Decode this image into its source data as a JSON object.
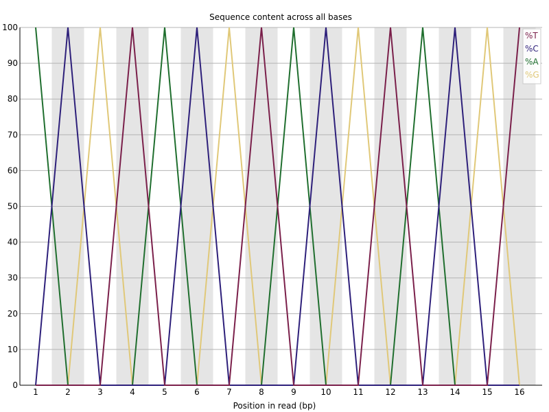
{
  "chart_data": {
    "type": "line",
    "title": "Sequence content across all bases",
    "xlabel": "Position in read (bp)",
    "ylabel": "",
    "ylim": [
      0,
      100
    ],
    "yticks": [
      0,
      10,
      20,
      30,
      40,
      50,
      60,
      70,
      80,
      90,
      100
    ],
    "categories": [
      "1",
      "2",
      "3",
      "4",
      "5",
      "6",
      "7",
      "8",
      "9",
      "10",
      "11",
      "12",
      "13",
      "14",
      "15",
      "16"
    ],
    "grid": "horizontal, alternating shaded position bands",
    "legend_position": "top-right",
    "series": [
      {
        "name": "%T",
        "color": "#7a1f4a",
        "values": [
          0,
          0,
          0,
          100,
          0,
          0,
          0,
          100,
          0,
          0,
          0,
          100,
          0,
          0,
          0,
          100
        ]
      },
      {
        "name": "%C",
        "color": "#2d1f7a",
        "values": [
          0,
          100,
          0,
          0,
          0,
          100,
          0,
          0,
          0,
          100,
          0,
          0,
          0,
          100,
          0,
          0
        ]
      },
      {
        "name": "%A",
        "color": "#1f6e2e",
        "values": [
          100,
          0,
          0,
          0,
          100,
          0,
          0,
          0,
          100,
          0,
          0,
          0,
          100,
          0,
          0,
          0
        ]
      },
      {
        "name": "%G",
        "color": "#e0c878",
        "values": [
          0,
          0,
          100,
          0,
          0,
          0,
          100,
          0,
          0,
          0,
          100,
          0,
          0,
          0,
          100,
          0
        ]
      }
    ]
  }
}
